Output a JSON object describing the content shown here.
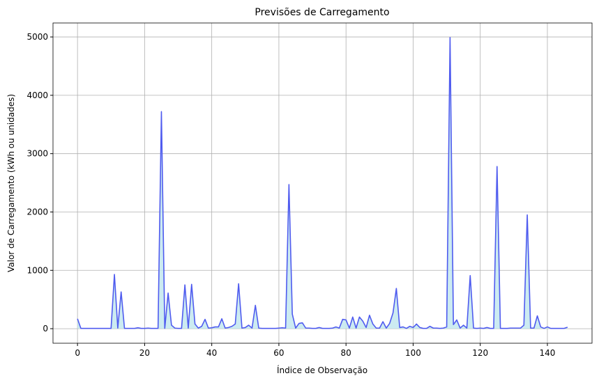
{
  "chart_data": {
    "type": "line",
    "title": "Previsões de Carregamento",
    "xlabel": "Índice de Observação",
    "ylabel": "Valor de Carregamento (kWh ou unidades)",
    "x": [
      0,
      1,
      2,
      3,
      4,
      5,
      6,
      7,
      8,
      9,
      10,
      11,
      12,
      13,
      14,
      15,
      16,
      17,
      18,
      19,
      20,
      21,
      22,
      23,
      24,
      25,
      26,
      27,
      28,
      29,
      30,
      31,
      32,
      33,
      34,
      35,
      36,
      37,
      38,
      39,
      40,
      41,
      42,
      43,
      44,
      45,
      46,
      47,
      48,
      49,
      50,
      51,
      52,
      53,
      54,
      55,
      56,
      57,
      58,
      59,
      60,
      61,
      62,
      63,
      64,
      65,
      66,
      67,
      68,
      69,
      70,
      71,
      72,
      73,
      74,
      75,
      76,
      77,
      78,
      79,
      80,
      81,
      82,
      83,
      84,
      85,
      86,
      87,
      88,
      89,
      90,
      91,
      92,
      93,
      94,
      95,
      96,
      97,
      98,
      99,
      100,
      101,
      102,
      103,
      104,
      105,
      106,
      107,
      108,
      109,
      110,
      111,
      112,
      113,
      114,
      115,
      116,
      117,
      118,
      119,
      120,
      121,
      122,
      123,
      124,
      125,
      126,
      127,
      128,
      129,
      130,
      131,
      132,
      133,
      134,
      135,
      136,
      137,
      138,
      139,
      140,
      141,
      142,
      143,
      144,
      145,
      146
    ],
    "series": [
      {
        "color": "#4f5bef",
        "fill": "#c3e8ef",
        "values": [
          170,
          5,
          5,
          5,
          5,
          5,
          5,
          5,
          5,
          5,
          5,
          930,
          10,
          630,
          5,
          5,
          5,
          5,
          15,
          5,
          5,
          10,
          5,
          5,
          5,
          3720,
          5,
          610,
          60,
          10,
          5,
          5,
          750,
          10,
          760,
          80,
          10,
          40,
          160,
          10,
          15,
          30,
          30,
          170,
          10,
          20,
          40,
          80,
          770,
          10,
          20,
          60,
          10,
          400,
          10,
          5,
          5,
          5,
          5,
          5,
          10,
          15,
          10,
          2470,
          250,
          10,
          90,
          100,
          10,
          10,
          5,
          5,
          20,
          5,
          5,
          5,
          10,
          30,
          10,
          160,
          150,
          10,
          200,
          10,
          200,
          130,
          20,
          230,
          80,
          10,
          10,
          120,
          10,
          90,
          270,
          690,
          20,
          30,
          5,
          40,
          20,
          80,
          20,
          5,
          5,
          40,
          10,
          10,
          5,
          10,
          30,
          4990,
          70,
          150,
          10,
          60,
          10,
          910,
          10,
          5,
          10,
          5,
          20,
          5,
          5,
          2780,
          5,
          5,
          5,
          10,
          10,
          10,
          10,
          60,
          1950,
          10,
          10,
          220,
          30,
          5,
          30,
          5,
          5,
          5,
          5,
          5,
          25
        ]
      }
    ],
    "xlim": [
      -7.3,
      153.3
    ],
    "ylim": [
      -249.5,
      5239.5
    ],
    "xticks": [
      0,
      20,
      40,
      60,
      80,
      100,
      120,
      140
    ],
    "yticks": [
      0,
      1000,
      2000,
      3000,
      4000,
      5000
    ],
    "grid": true
  }
}
